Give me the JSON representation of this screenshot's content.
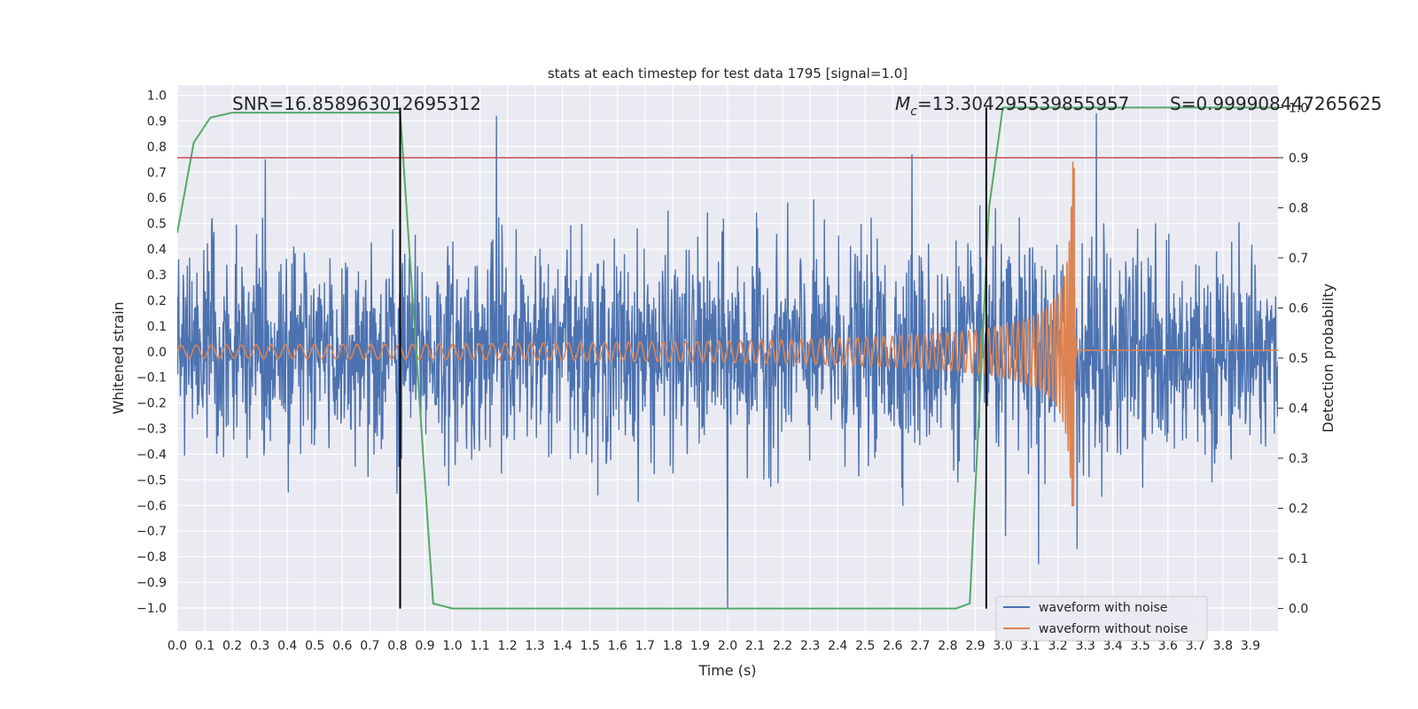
{
  "chart_data": {
    "type": "line",
    "title": "stats at each timestep for test data 1795 [signal=1.0]",
    "xlabel": "Time (s)",
    "ylabel": "Whitened strain",
    "y2label": "Detection probability",
    "xlim": [
      0.0,
      4.0
    ],
    "ylim": [
      -1.09,
      1.04
    ],
    "y2lim": [
      -0.045,
      1.045
    ],
    "xticks": [
      "0.0",
      "0.1",
      "0.2",
      "0.3",
      "0.4",
      "0.5",
      "0.6",
      "0.7",
      "0.8",
      "0.9",
      "1.0",
      "1.1",
      "1.2",
      "1.3",
      "1.4",
      "1.5",
      "1.6",
      "1.7",
      "1.8",
      "1.9",
      "2.0",
      "2.1",
      "2.2",
      "2.3",
      "2.4",
      "2.5",
      "2.6",
      "2.7",
      "2.8",
      "2.9",
      "3.0",
      "3.1",
      "3.2",
      "3.3",
      "3.4",
      "3.5",
      "3.6",
      "3.7",
      "3.8",
      "3.9"
    ],
    "yticks": [
      "1.0",
      "0.9",
      "0.8",
      "0.7",
      "0.6",
      "0.5",
      "0.4",
      "0.3",
      "0.2",
      "0.1",
      "0.0",
      "−0.1",
      "−0.2",
      "−0.3",
      "−0.4",
      "−0.5",
      "−0.6",
      "−0.7",
      "−0.8",
      "−0.9",
      "−1.0"
    ],
    "y2ticks": [
      "1.0",
      "0.9",
      "0.8",
      "0.7",
      "0.6",
      "0.5",
      "0.4",
      "0.3",
      "0.2",
      "0.1",
      "0.0"
    ],
    "grid": true,
    "legend_position": "lower-right",
    "legend": [
      {
        "label": "waveform with noise",
        "color": "#4c72b0"
      },
      {
        "label": "waveform without noise",
        "color": "#dd8452"
      }
    ],
    "annotations": {
      "snr": "SNR=16.858963012695312",
      "mc_symbol": "M",
      "mc_sub": "c",
      "mc_value": "=13.304295539855957",
      "s": "S=0.999908447265625"
    },
    "threshold": {
      "axis": "y2",
      "value": 0.9,
      "color": "#c44e52"
    },
    "vertical_lines": [
      0.81,
      2.94
    ],
    "series": [
      {
        "name": "waveform with noise",
        "axis": "y",
        "color": "#4c72b0",
        "kind": "noise",
        "envelope": [
          [
            0.0,
            0.55,
            -0.45
          ],
          [
            0.5,
            0.6,
            -0.6
          ],
          [
            1.0,
            0.65,
            -0.55
          ],
          [
            1.5,
            0.65,
            -0.6
          ],
          [
            2.0,
            0.65,
            -0.65
          ],
          [
            2.5,
            0.6,
            -0.6
          ],
          [
            3.0,
            0.65,
            -0.65
          ],
          [
            3.5,
            0.55,
            -0.55
          ],
          [
            4.0,
            0.5,
            -0.5
          ]
        ],
        "spikes": [
          [
            0.32,
            0.75
          ],
          [
            1.16,
            0.92
          ],
          [
            2.0,
            -1.0
          ],
          [
            2.67,
            0.77
          ],
          [
            3.34,
            0.93
          ],
          [
            3.27,
            -0.77
          ],
          [
            3.13,
            -0.83
          ],
          [
            3.01,
            -0.72
          ]
        ]
      },
      {
        "name": "waveform without noise",
        "axis": "y",
        "color": "#dd8452",
        "kind": "chirp",
        "merger_time": 3.26,
        "amplitude_early": 0.025,
        "amplitude_peak": 0.75,
        "amplitude_trough": -0.6
      },
      {
        "name": "",
        "axis": "y2",
        "color": "#55a868",
        "kind": "polyline",
        "x": [
          0.0,
          0.06,
          0.12,
          0.2,
          0.5,
          0.81,
          0.93,
          1.0,
          1.5,
          2.0,
          2.5,
          2.83,
          2.88,
          2.95,
          3.0,
          3.5,
          4.0
        ],
        "y": [
          0.75,
          0.93,
          0.98,
          0.99,
          0.99,
          0.99,
          0.01,
          0.0,
          0.0,
          0.0,
          0.0,
          0.0,
          0.01,
          0.8,
          1.0,
          1.0,
          1.0
        ]
      }
    ]
  }
}
